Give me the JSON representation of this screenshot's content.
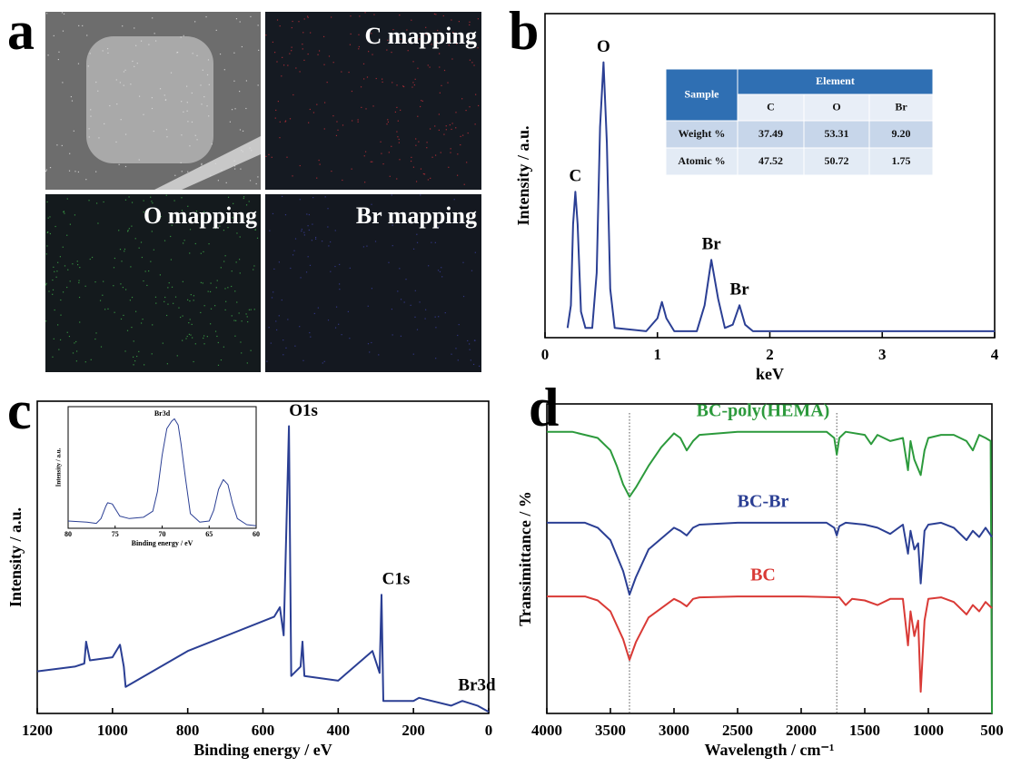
{
  "panel_a": {
    "label": "a",
    "titles": [
      "C mapping",
      "O mapping",
      "Br mapping"
    ]
  },
  "chart_data": [
    {
      "type": "line",
      "label": "b",
      "xlabel": "keV",
      "ylabel": "Intensity / a.u.",
      "xlim": [
        0,
        4
      ],
      "xticks": [
        0,
        1,
        2,
        3,
        4
      ],
      "ylim": [
        0,
        100
      ],
      "series": [
        {
          "color": "#2b3f94",
          "x": [
            0.2,
            0.23,
            0.25,
            0.27,
            0.29,
            0.32,
            0.36,
            0.42,
            0.46,
            0.49,
            0.52,
            0.55,
            0.58,
            0.62,
            0.9,
            1.0,
            1.04,
            1.08,
            1.15,
            1.35,
            1.42,
            1.48,
            1.54,
            1.6,
            1.67,
            1.73,
            1.78,
            1.85,
            2.5,
            3.0,
            3.5,
            4.0
          ],
          "values": [
            3,
            10,
            35,
            45,
            35,
            8,
            3,
            3,
            20,
            65,
            85,
            60,
            15,
            3,
            2,
            6,
            11,
            6,
            2,
            2,
            10,
            24,
            12,
            3,
            4,
            10,
            4,
            2,
            2,
            2,
            2,
            2
          ]
        }
      ],
      "annotations": [
        {
          "text": "C",
          "x": 0.27
        },
        {
          "text": "O",
          "x": 0.52
        },
        {
          "text": "Br",
          "x": 1.48
        },
        {
          "text": "Br",
          "x": 1.73
        }
      ],
      "table": {
        "corner": "Sample",
        "group": "Element",
        "columns": [
          "C",
          "O",
          "Br"
        ],
        "rows": [
          {
            "label": "Weight %",
            "cells": [
              "37.49",
              "53.31",
              "9.20"
            ]
          },
          {
            "label": "Atomic %",
            "cells": [
              "47.52",
              "50.72",
              "1.75"
            ]
          }
        ]
      }
    },
    {
      "type": "line",
      "label": "c",
      "xlabel": "Binding energy / eV",
      "ylabel": "Intensity / a.u.",
      "xlim": [
        1200,
        0
      ],
      "xticks": [
        1200,
        1000,
        800,
        600,
        400,
        200,
        0
      ],
      "ylim": [
        0,
        100
      ],
      "series": [
        {
          "color": "#2b3f94",
          "x": [
            1200,
            1100,
            1075,
            1070,
            1060,
            1000,
            980,
            970,
            965,
            800,
            570,
            555,
            545,
            531,
            525,
            500,
            495,
            490,
            400,
            309,
            290,
            285,
            280,
            200,
            185,
            100,
            70,
            30,
            0
          ],
          "values": [
            13.5,
            15,
            16,
            23,
            17,
            18,
            22,
            15,
            8.5,
            20,
            31,
            34,
            25,
            92,
            12,
            15,
            23,
            12,
            10.5,
            20,
            13,
            38,
            4,
            4,
            5,
            2.5,
            4,
            2.5,
            0.5
          ]
        }
      ],
      "annotations": [
        {
          "text": "O1s",
          "x": 531
        },
        {
          "text": "C1s",
          "x": 285
        },
        {
          "text": "Br3d",
          "x": 70
        }
      ]
    },
    {
      "type": "line",
      "title": "Br3d",
      "xlabel": "Binding energy / eV",
      "ylabel": "Intensity / a.u.",
      "xlim": [
        80,
        60
      ],
      "xticks": [
        80,
        75,
        70,
        65,
        60
      ],
      "ylim": [
        0,
        100
      ],
      "series": [
        {
          "color": "#2b3f94",
          "x": [
            80,
            78,
            77,
            76.5,
            76,
            75.8,
            75.3,
            74.5,
            73.5,
            72,
            71,
            70.5,
            70,
            69.5,
            69,
            68.7,
            68.3,
            68,
            67.5,
            67,
            66,
            65,
            64.5,
            64,
            63.5,
            63,
            62.5,
            62,
            61,
            60
          ],
          "values": [
            6,
            5,
            4,
            8,
            18,
            21,
            20,
            10,
            8,
            9,
            14,
            30,
            60,
            82,
            88,
            90,
            85,
            70,
            40,
            12,
            5,
            6,
            15,
            32,
            40,
            36,
            20,
            8,
            3,
            2
          ]
        }
      ]
    },
    {
      "type": "line",
      "label": "d",
      "xlabel": "Wavelength / cm⁻¹",
      "ylabel": "Transimittance / %",
      "xlim": [
        4000,
        500
      ],
      "xticks": [
        4000,
        3500,
        3000,
        2500,
        2000,
        1500,
        1000,
        500
      ],
      "ylim": [
        0,
        100
      ],
      "ref_lines": [
        3350,
        1720
      ],
      "series": [
        {
          "name": "BC-poly(HEMA)",
          "color": "#2c9a3c",
          "x": [
            4000,
            3800,
            3600,
            3500,
            3450,
            3400,
            3350,
            3300,
            3200,
            3100,
            3000,
            2950,
            2900,
            2850,
            2800,
            2500,
            2000,
            1800,
            1740,
            1720,
            1700,
            1650,
            1500,
            1450,
            1400,
            1300,
            1200,
            1160,
            1140,
            1110,
            1060,
            1030,
            1000,
            900,
            800,
            700,
            650,
            600,
            550,
            510,
            500
          ],
          "values": [
            91,
            91,
            89,
            85,
            80,
            74,
            70,
            73,
            80,
            86,
            90.5,
            89,
            85,
            88,
            90,
            91,
            91,
            91,
            89,
            83.6,
            89,
            91,
            90,
            87,
            90,
            88,
            89,
            78.6,
            88,
            82,
            77,
            85,
            89,
            90,
            90,
            88,
            85,
            90,
            89,
            88,
            0
          ]
        },
        {
          "name": "BC-Br",
          "color": "#2b3f94",
          "x": [
            4000,
            3700,
            3600,
            3500,
            3400,
            3350,
            3300,
            3200,
            3000,
            2950,
            2900,
            2850,
            2800,
            2500,
            2000,
            1800,
            1740,
            1720,
            1700,
            1650,
            1500,
            1400,
            1300,
            1200,
            1160,
            1140,
            1110,
            1080,
            1060,
            1030,
            1000,
            900,
            800,
            700,
            650,
            600,
            550,
            500
          ],
          "values": [
            61.6,
            61.6,
            60,
            56,
            46,
            38.4,
            44,
            53,
            60,
            59,
            57.5,
            60,
            61,
            61.6,
            61.6,
            61.6,
            60,
            57.5,
            60.5,
            61.6,
            61,
            60,
            58,
            61,
            51.6,
            59,
            53,
            55,
            42,
            59,
            61,
            61.6,
            60,
            56,
            59,
            57,
            60,
            57
          ]
        },
        {
          "name": "BC",
          "color": "#d93a36",
          "x": [
            4000,
            3700,
            3600,
            3500,
            3400,
            3350,
            3300,
            3200,
            3000,
            2950,
            2900,
            2850,
            2800,
            2500,
            2000,
            1700,
            1650,
            1600,
            1500,
            1400,
            1300,
            1200,
            1160,
            1140,
            1110,
            1080,
            1060,
            1030,
            1000,
            900,
            800,
            700,
            650,
            600,
            550,
            500
          ],
          "values": [
            37.8,
            37.8,
            36.5,
            33,
            24,
            17.3,
            23,
            31,
            37,
            36,
            34.6,
            37,
            37.5,
            37.8,
            37.8,
            37.5,
            35,
            37,
            36.5,
            35,
            37,
            37,
            22,
            33,
            25,
            30,
            7,
            30,
            37,
            37.5,
            36,
            32,
            35,
            33,
            36,
            34
          ]
        }
      ]
    }
  ]
}
